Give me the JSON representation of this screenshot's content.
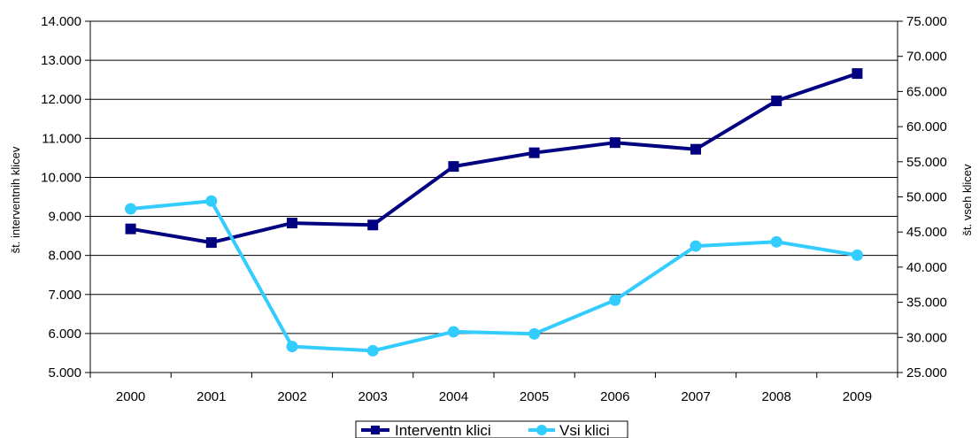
{
  "chart_data": {
    "type": "line",
    "categories": [
      "2000",
      "2001",
      "2002",
      "2003",
      "2004",
      "2005",
      "2006",
      "2007",
      "2008",
      "2009"
    ],
    "series": [
      {
        "name": "Interventn klici",
        "axis": "left",
        "color": "#000080",
        "marker": "square",
        "values": [
          8680,
          8330,
          8830,
          8780,
          10280,
          10630,
          10890,
          10720,
          11960,
          12660
        ]
      },
      {
        "name": "Vsi klici",
        "axis": "right",
        "color": "#33ccff",
        "marker": "circle",
        "values": [
          48300,
          49400,
          28700,
          28100,
          30800,
          30500,
          35300,
          43000,
          43600,
          41700
        ]
      }
    ],
    "y_left": {
      "label": "št. interventnih klicev",
      "min": 5000,
      "max": 14000,
      "ticks": [
        "5.000",
        "6.000",
        "7.000",
        "8.000",
        "9.000",
        "10.000",
        "11.000",
        "12.000",
        "13.000",
        "14.000"
      ]
    },
    "y_right": {
      "label": "št. vseh klicev",
      "min": 25000,
      "max": 75000,
      "ticks": [
        "25.000",
        "30.000",
        "35.000",
        "40.000",
        "45.000",
        "50.000",
        "55.000",
        "60.000",
        "65.000",
        "70.000",
        "75.000"
      ]
    },
    "grid": "horizontal",
    "legend_position": "bottom"
  }
}
